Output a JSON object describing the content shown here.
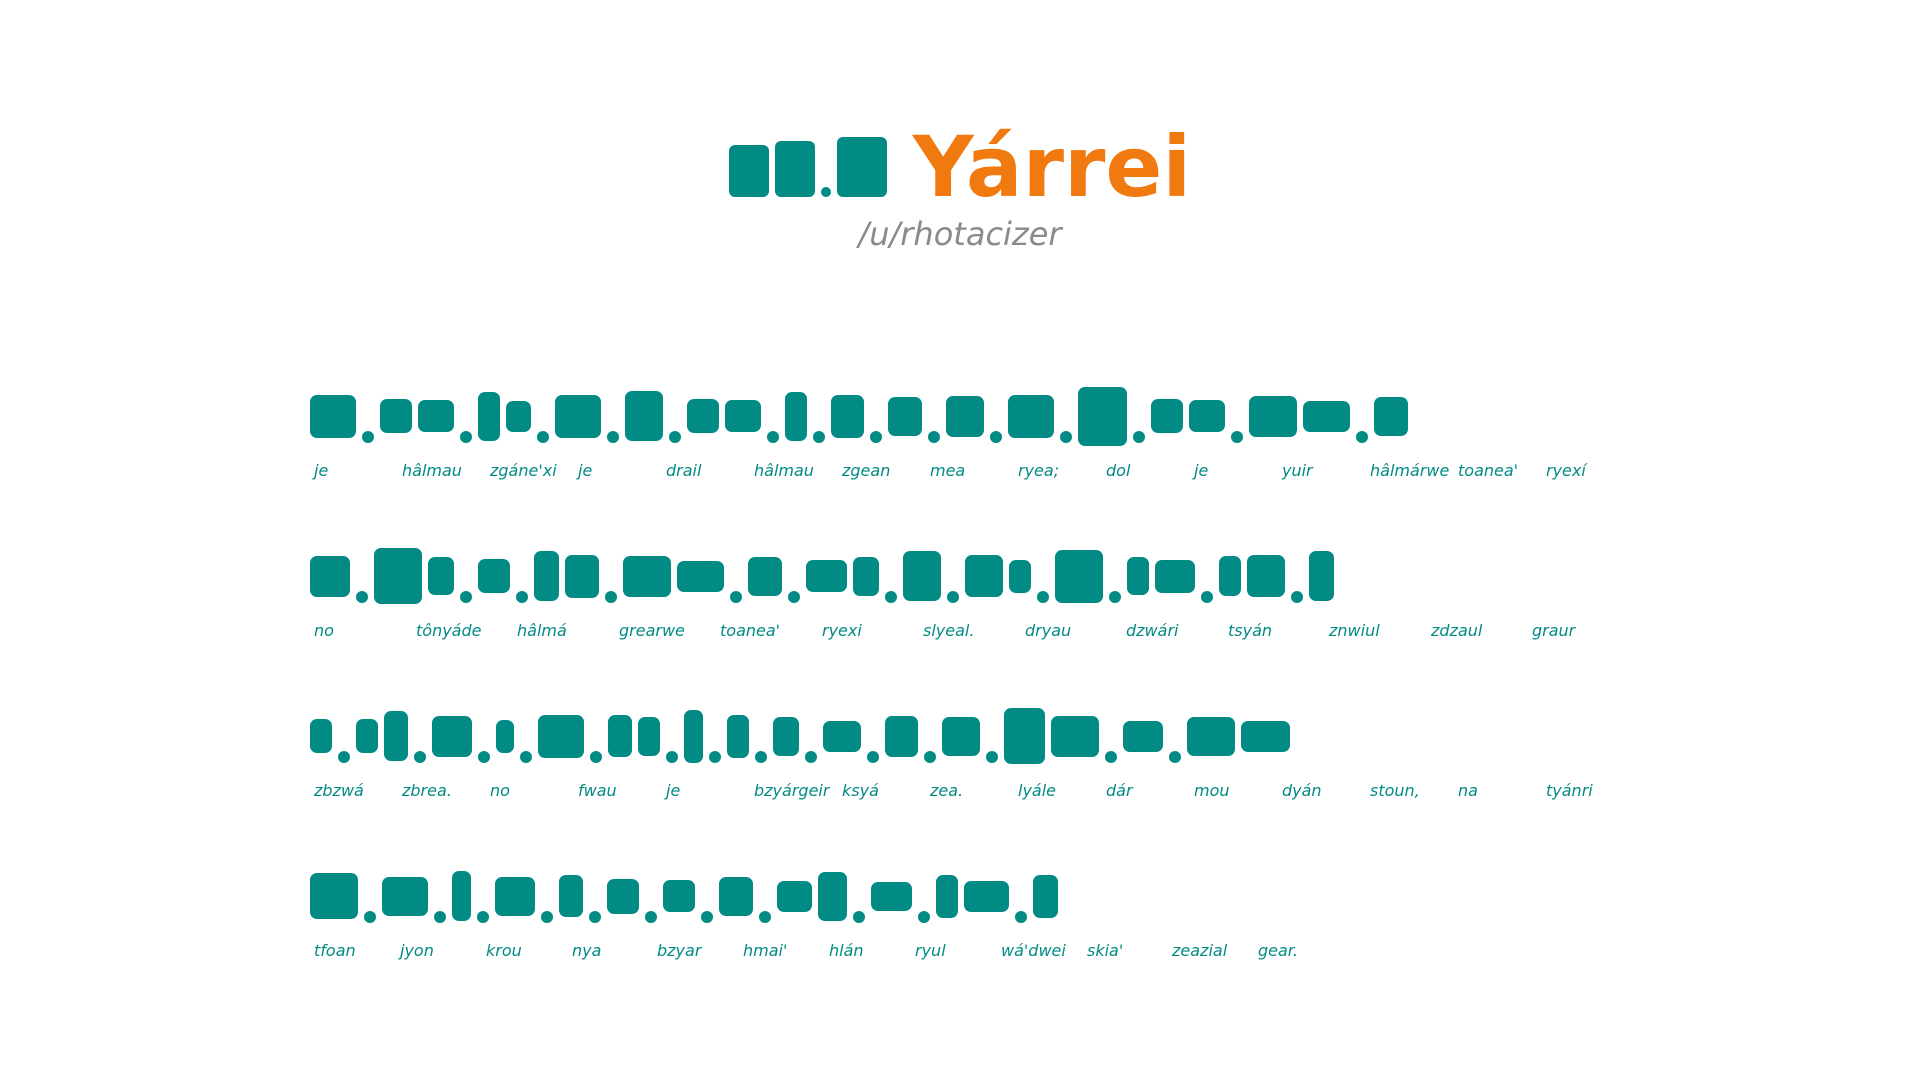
{
  "header": {
    "title": "Yárrei",
    "subtitle": "/u/rhotacizer"
  },
  "colors": {
    "accent": "#f07a10",
    "glyph": "#028b85",
    "subtitle": "#8a8a8a"
  },
  "lines": [
    {
      "words": [
        "je",
        "hâlmau",
        "zgáne'xi",
        "je",
        "drail",
        "hâlmau",
        "zgean",
        "mea",
        "ryea;",
        "dol",
        "je",
        "yuir",
        "hâlmárwe",
        "toanea'",
        "ryexí"
      ]
    },
    {
      "words": [
        "no",
        "tônyáde",
        "hâlmá",
        "grearwe",
        "toanea'",
        "ryexi",
        "slyeal.",
        "dryau",
        "dzwári",
        "tsyán",
        "znwiul",
        "zdzaul",
        "graur"
      ]
    },
    {
      "words": [
        "zbzwá",
        "zbrea.",
        "no",
        "fwau",
        "je",
        "bzyárgeir",
        "ksyá",
        "zea.",
        "lyále",
        "dár",
        "mou",
        "dyán",
        "stoun,",
        "na",
        "tyánri"
      ]
    },
    {
      "words": [
        "tfoan",
        "jyon",
        "krou",
        "nya",
        "bzyar",
        "hmai'",
        "hlán",
        "ryul",
        "wá'dwei",
        "skia'",
        "zeazial",
        "gear."
      ]
    }
  ]
}
